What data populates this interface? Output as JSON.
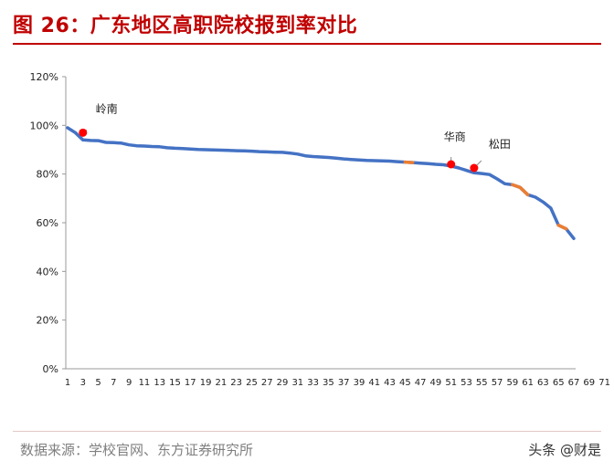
{
  "title": "图 26：广东地区高职院校报到率对比",
  "source": "数据来源：学校官网、东方证券研究所",
  "watermark": "头条 @财是",
  "colors": {
    "accent": "#c00000",
    "main_line": "#4472c4",
    "highlight_line": "#ed7d31",
    "marker": "#ff0000"
  },
  "chart_data": {
    "type": "line",
    "title": "",
    "xlabel": "",
    "ylabel": "",
    "ylim": [
      0,
      120
    ],
    "y_ticks": [
      "0%",
      "20%",
      "40%",
      "60%",
      "80%",
      "100%",
      "120%"
    ],
    "x_tick_labels": [
      "1",
      "3",
      "5",
      "7",
      "9",
      "11",
      "13",
      "15",
      "17",
      "19",
      "21",
      "23",
      "25",
      "27",
      "29",
      "31",
      "33",
      "35",
      "37",
      "39",
      "41",
      "43",
      "45",
      "47",
      "49",
      "51",
      "53",
      "55",
      "57",
      "59",
      "61",
      "63",
      "65",
      "67",
      "69",
      "71"
    ],
    "grid": false,
    "legend": "none",
    "series": [
      {
        "values": [
          99,
          97,
          94,
          93.8,
          93.7,
          93,
          92.9,
          92.7,
          92,
          91.6,
          91.5,
          91.3,
          91.2,
          90.8,
          90.6,
          90.5,
          90.3,
          90.1,
          90,
          89.9,
          89.8,
          89.7,
          89.6,
          89.5,
          89.4,
          89.2,
          89.1,
          89.0,
          88.9,
          88.6,
          88.2,
          87.5,
          87.2,
          87.0,
          86.8,
          86.5,
          86.2,
          86.0,
          85.8,
          85.6,
          85.5,
          85.4,
          85.3,
          85.1,
          84.9,
          84.7,
          84.5,
          84.3,
          84.0,
          83.8,
          83.3,
          82.5,
          81.5,
          80.5,
          80.2,
          79.8,
          78.0,
          76.0,
          75.6,
          74.5,
          71.5,
          70.5,
          68.5,
          66.0,
          59.0,
          57.5,
          53.5
        ]
      }
    ],
    "highlight_ranges": [
      [
        44,
        45
      ],
      [
        58,
        60
      ],
      [
        64,
        65
      ],
      [
        66,
        67
      ]
    ],
    "highlight_note": "orange segments",
    "markers": [
      {
        "label": "岭南",
        "x_index": 2,
        "value": 97
      },
      {
        "label": "华商",
        "x_index": 50,
        "value": 84
      },
      {
        "label": "松田",
        "x_index": 53,
        "value": 82.5
      }
    ]
  }
}
